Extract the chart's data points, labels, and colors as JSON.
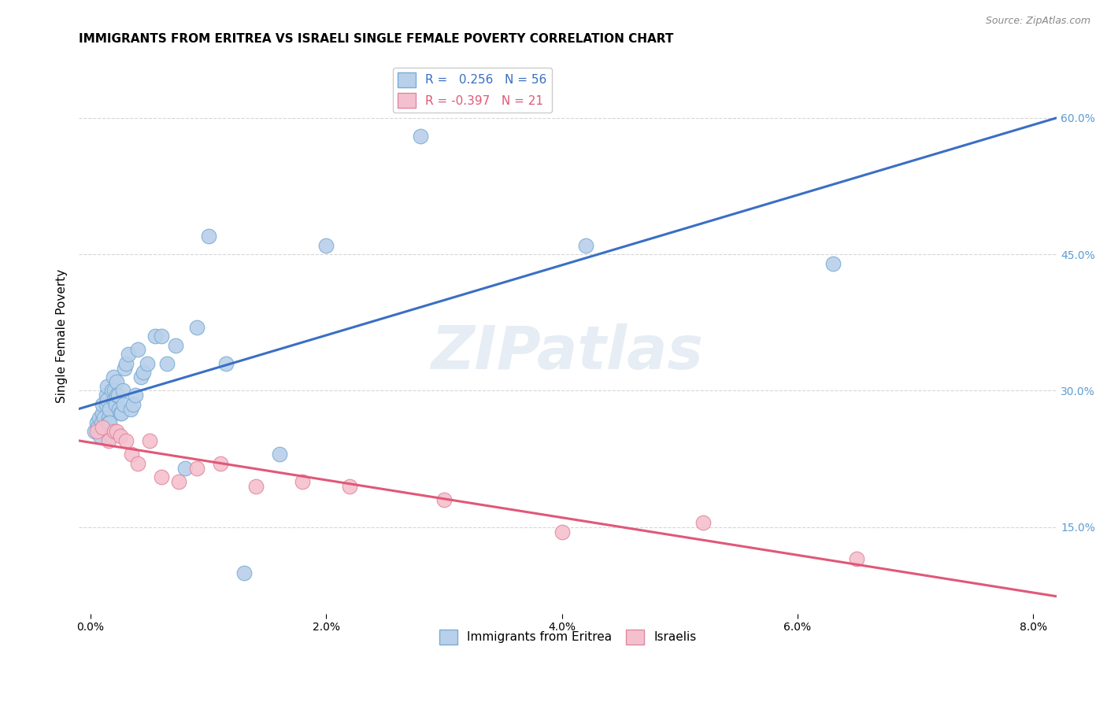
{
  "title": "IMMIGRANTS FROM ERITREA VS ISRAELI SINGLE FEMALE POVERTY CORRELATION CHART",
  "source": "Source: ZipAtlas.com",
  "ylabel": "Single Female Poverty",
  "y_ticks": [
    0.15,
    0.3,
    0.45,
    0.6
  ],
  "y_tick_labels": [
    "15.0%",
    "30.0%",
    "45.0%",
    "60.0%"
  ],
  "x_ticks": [
    0.0,
    0.02,
    0.04,
    0.06,
    0.08
  ],
  "x_tick_labels": [
    "0.0%",
    "2.0%",
    "4.0%",
    "6.0%",
    "8.0%"
  ],
  "xlim": [
    -0.001,
    0.082
  ],
  "ylim": [
    0.055,
    0.665
  ],
  "watermark": "ZIPatlas",
  "series": [
    {
      "name": "Immigrants from Eritrea",
      "R": 0.256,
      "N": 56,
      "line_color": "#3a6fc4",
      "marker_facecolor": "#b8d0ea",
      "marker_edgecolor": "#7aadd4",
      "x": [
        0.0003,
        0.0005,
        0.0006,
        0.0007,
        0.0008,
        0.0009,
        0.001,
        0.001,
        0.0011,
        0.0012,
        0.0013,
        0.0013,
        0.0014,
        0.0014,
        0.0015,
        0.0015,
        0.0016,
        0.0016,
        0.0017,
        0.0018,
        0.0019,
        0.002,
        0.002,
        0.0021,
        0.0022,
        0.0022,
        0.0023,
        0.0024,
        0.0025,
        0.0026,
        0.0027,
        0.0028,
        0.0029,
        0.003,
        0.0032,
        0.0034,
        0.0036,
        0.0038,
        0.004,
        0.0043,
        0.0045,
        0.0048,
        0.0055,
        0.006,
        0.0065,
        0.0072,
        0.008,
        0.009,
        0.01,
        0.0115,
        0.013,
        0.016,
        0.02,
        0.028,
        0.042,
        0.063
      ],
      "y": [
        0.255,
        0.265,
        0.26,
        0.27,
        0.25,
        0.265,
        0.275,
        0.285,
        0.27,
        0.26,
        0.295,
        0.285,
        0.305,
        0.29,
        0.27,
        0.265,
        0.28,
        0.265,
        0.25,
        0.3,
        0.315,
        0.3,
        0.29,
        0.285,
        0.31,
        0.295,
        0.295,
        0.28,
        0.275,
        0.275,
        0.3,
        0.285,
        0.325,
        0.33,
        0.34,
        0.28,
        0.285,
        0.295,
        0.345,
        0.315,
        0.32,
        0.33,
        0.36,
        0.36,
        0.33,
        0.35,
        0.215,
        0.37,
        0.47,
        0.33,
        0.1,
        0.23,
        0.46,
        0.58,
        0.46,
        0.44
      ]
    },
    {
      "name": "Israelis",
      "R": -0.397,
      "N": 21,
      "line_color": "#e05878",
      "marker_facecolor": "#f5c0ce",
      "marker_edgecolor": "#e088a0",
      "x": [
        0.0005,
        0.001,
        0.0015,
        0.002,
        0.0022,
        0.0025,
        0.003,
        0.0035,
        0.004,
        0.005,
        0.006,
        0.0075,
        0.009,
        0.011,
        0.014,
        0.018,
        0.022,
        0.03,
        0.04,
        0.052,
        0.065
      ],
      "y": [
        0.255,
        0.26,
        0.245,
        0.255,
        0.255,
        0.25,
        0.245,
        0.23,
        0.22,
        0.245,
        0.205,
        0.2,
        0.215,
        0.22,
        0.195,
        0.2,
        0.195,
        0.18,
        0.145,
        0.155,
        0.115
      ]
    }
  ],
  "background_color": "#ffffff",
  "grid_color": "#cccccc",
  "title_fontsize": 11,
  "right_axis_label_color": "#5b9bd5",
  "watermark_color": "#c8d8e8",
  "watermark_alpha": 0.45
}
